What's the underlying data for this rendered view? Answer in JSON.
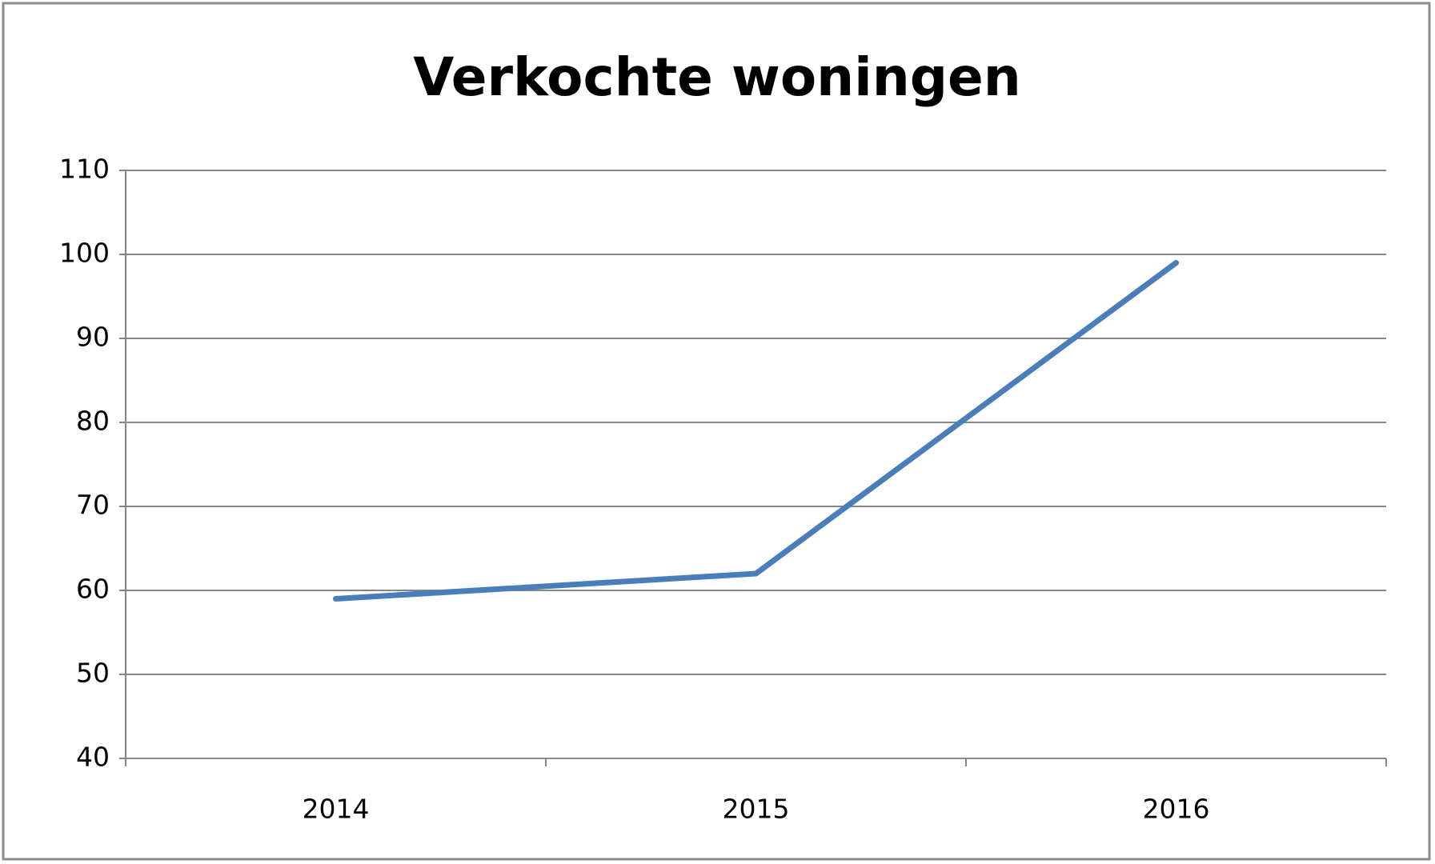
{
  "chart_data": {
    "type": "line",
    "title": "Verkochte woningen",
    "categories": [
      "2014",
      "2015",
      "2016"
    ],
    "series": [
      {
        "name": "Verkochte woningen",
        "color": "#4a7ebb",
        "values": [
          59,
          62,
          99
        ]
      }
    ],
    "ylim": [
      40,
      110
    ],
    "yticks": [
      40,
      50,
      60,
      70,
      80,
      90,
      100,
      110
    ],
    "grid": true
  }
}
